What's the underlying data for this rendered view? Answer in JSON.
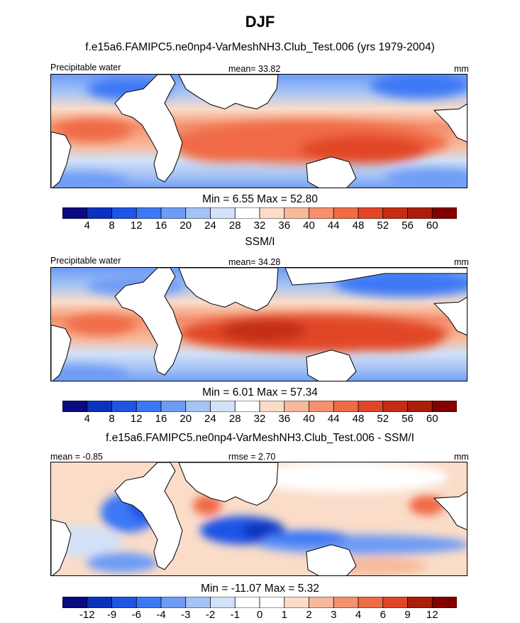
{
  "figure": {
    "title": "DJF"
  },
  "colors": {
    "abs_scale": [
      "#0a0a82",
      "#0b32be",
      "#1f55e6",
      "#3c78f5",
      "#6e9cf5",
      "#a5c3f5",
      "#d2e1f7",
      "#ffffff",
      "#fadcc8",
      "#f7b99b",
      "#f5916e",
      "#f06a46",
      "#e14628",
      "#c32d14",
      "#aa1e0a",
      "#820000"
    ],
    "diff_scale": [
      "#0a0a82",
      "#0b32be",
      "#1f55e6",
      "#3c78f5",
      "#6e9cf5",
      "#a5c3f5",
      "#d2e1f7",
      "#ffffff",
      "#ffffff",
      "#fadcc8",
      "#f7b99b",
      "#f5916e",
      "#f06a46",
      "#e14628",
      "#aa1e0a",
      "#820000"
    ],
    "land": "#ffffff",
    "coast": "#000000"
  },
  "panels": [
    {
      "subtitle": "f.e15a6.FAMIPC5.ne0np4-VarMeshNH3.Club_Test.006 (yrs 1979-2004)",
      "left_label": "Precipitable water",
      "center_label": "mean=  33.82",
      "right_label": "mm",
      "stats": "Min =   6.55 Max =  52.80",
      "ticks": [
        "4",
        "8",
        "12",
        "16",
        "20",
        "24",
        "28",
        "32",
        "36",
        "40",
        "44",
        "48",
        "52",
        "56",
        "60"
      ]
    },
    {
      "subtitle": "SSM/I",
      "left_label": "Precipitable water",
      "center_label": "mean=  34.28",
      "right_label": "mm",
      "stats": "Min =   6.01 Max =  57.34",
      "ticks": [
        "4",
        "8",
        "12",
        "16",
        "20",
        "24",
        "28",
        "32",
        "36",
        "40",
        "44",
        "48",
        "52",
        "56",
        "60"
      ]
    },
    {
      "subtitle": "f.e15a6.FAMIPC5.ne0np4-VarMeshNH3.Club_Test.006 - SSM/I",
      "left_label": "mean =  -0.85",
      "center_label": "rmse =   2.70",
      "right_label": "mm",
      "stats": "Min = -11.07 Max =   5.32",
      "ticks": [
        "-12",
        "-9",
        "-6",
        "-4",
        "-3",
        "-2",
        "-1",
        "0",
        "1",
        "2",
        "3",
        "4",
        "6",
        "9",
        "12"
      ]
    }
  ],
  "chart_data": [
    {
      "type": "heatmap",
      "title": "f.e15a6.FAMIPC5.ne0np4-VarMeshNH3.Club_Test.006 (yrs 1979-2004)",
      "variable": "Precipitable water",
      "units": "mm",
      "mean": 33.82,
      "min": 6.55,
      "max": 52.8,
      "colorbar_levels": [
        4,
        8,
        12,
        16,
        20,
        24,
        28,
        32,
        36,
        40,
        44,
        48,
        52,
        56,
        60
      ]
    },
    {
      "type": "heatmap",
      "title": "SSM/I",
      "variable": "Precipitable water",
      "units": "mm",
      "mean": 34.28,
      "min": 6.01,
      "max": 57.34,
      "colorbar_levels": [
        4,
        8,
        12,
        16,
        20,
        24,
        28,
        32,
        36,
        40,
        44,
        48,
        52,
        56,
        60
      ]
    },
    {
      "type": "heatmap",
      "title": "f.e15a6.FAMIPC5.ne0np4-VarMeshNH3.Club_Test.006 - SSM/I",
      "units": "mm",
      "mean": -0.85,
      "rmse": 2.7,
      "min": -11.07,
      "max": 5.32,
      "colorbar_levels": [
        -12,
        -9,
        -6,
        -4,
        -3,
        -2,
        -1,
        0,
        1,
        2,
        3,
        4,
        6,
        9,
        12
      ]
    }
  ]
}
